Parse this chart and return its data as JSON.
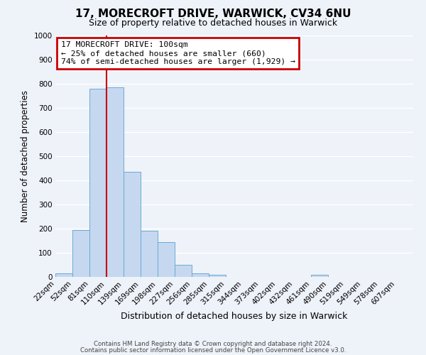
{
  "title": "17, MORECROFT DRIVE, WARWICK, CV34 6NU",
  "subtitle": "Size of property relative to detached houses in Warwick",
  "xlabel": "Distribution of detached houses by size in Warwick",
  "ylabel": "Number of detached properties",
  "bar_labels": [
    "22sqm",
    "52sqm",
    "81sqm",
    "110sqm",
    "139sqm",
    "169sqm",
    "198sqm",
    "227sqm",
    "256sqm",
    "285sqm",
    "315sqm",
    "344sqm",
    "373sqm",
    "402sqm",
    "432sqm",
    "461sqm",
    "490sqm",
    "519sqm",
    "549sqm",
    "578sqm",
    "607sqm"
  ],
  "bar_values": [
    15,
    195,
    780,
    785,
    435,
    190,
    145,
    50,
    15,
    10,
    0,
    0,
    0,
    0,
    0,
    10,
    0,
    0,
    0,
    0,
    0
  ],
  "bar_color": "#c5d8f0",
  "bar_edge_color": "#6aaad4",
  "vline_x_index": 3,
  "annotation_line1": "17 MORECROFT DRIVE: 100sqm",
  "annotation_line2": "← 25% of detached houses are smaller (660)",
  "annotation_line3": "74% of semi-detached houses are larger (1,929) →",
  "box_facecolor": "#ffffff",
  "box_edgecolor": "#cc0000",
  "ylim": [
    0,
    1000
  ],
  "yticks": [
    0,
    100,
    200,
    300,
    400,
    500,
    600,
    700,
    800,
    900,
    1000
  ],
  "footer1": "Contains HM Land Registry data © Crown copyright and database right 2024.",
  "footer2": "Contains public sector information licensed under the Open Government Licence v3.0.",
  "bg_color": "#eef2f9",
  "grid_color": "#ffffff",
  "vline_color": "#cc0000",
  "title_fontsize": 11,
  "subtitle_fontsize": 9,
  "tick_fontsize": 7.5,
  "ylabel_fontsize": 8.5,
  "xlabel_fontsize": 9
}
